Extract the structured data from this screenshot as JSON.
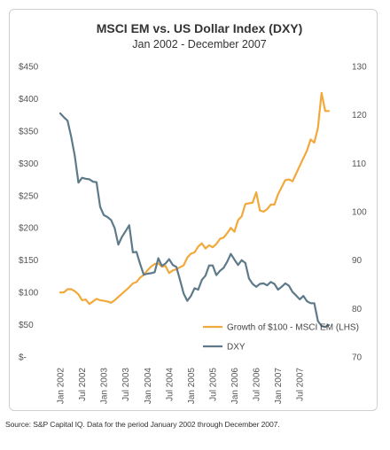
{
  "source_note": "Source: S&P Capital IQ. Data for the period January 2002 through December 2007.",
  "chart_data": {
    "type": "line",
    "title": "MSCI EM vs. US Dollar Index (DXY)",
    "subtitle": "Jan 2002 - December 2007",
    "left_axis": {
      "range": [
        0,
        450
      ],
      "ticks": [
        "$-",
        "$50",
        "$100",
        "$150",
        "$200",
        "$250",
        "$300",
        "$350",
        "$400",
        "$450"
      ]
    },
    "right_axis": {
      "range": [
        70,
        130
      ],
      "ticks": [
        "70",
        "80",
        "90",
        "100",
        "110",
        "120",
        "130"
      ]
    },
    "x_tick_labels": [
      "Jan 2002",
      "Jul 2002",
      "Jan 2003",
      "Jul 2003",
      "Jan 2004",
      "Jul 2004",
      "Jan 2005",
      "Jul 2005",
      "Jan 2006",
      "Jul 2006",
      "Jan 2007",
      "Jul 2007"
    ],
    "legend_position": "inside-bottom-right",
    "series": [
      {
        "name": "Growth of $100 - MSCI EM (LHS)",
        "axis": "left",
        "color": "#F2A93B",
        "values": [
          100,
          100,
          105,
          105,
          102,
          97,
          88,
          89,
          82,
          86,
          90,
          88,
          87,
          86,
          84,
          88,
          93,
          98,
          103,
          108,
          114,
          116,
          123,
          127,
          134,
          140,
          144,
          145,
          140,
          141,
          130,
          134,
          136,
          139,
          142,
          154,
          160,
          162,
          171,
          176,
          168,
          173,
          170,
          175,
          183,
          185,
          192,
          200,
          194,
          212,
          218,
          237,
          238,
          239,
          255,
          227,
          225,
          229,
          236,
          236,
          252,
          263,
          274,
          275,
          272,
          284,
          296,
          308,
          320,
          337,
          332,
          355,
          409,
          381,
          381
        ]
      },
      {
        "name": "DXY",
        "axis": "right",
        "color": "#5E7A8A",
        "values": [
          120.3,
          119.5,
          118.8,
          115.5,
          111.5,
          106.0,
          107.0,
          106.8,
          106.7,
          106.2,
          106.1,
          101.0,
          99.3,
          98.9,
          98.3,
          96.6,
          93.2,
          94.8,
          96.0,
          97.2,
          91.6,
          91.7,
          89.2,
          87.0,
          87.2,
          87.3,
          87.5,
          90.4,
          88.8,
          89.3,
          90.2,
          89.0,
          88.6,
          85.9,
          83.1,
          81.6,
          82.6,
          84.2,
          83.9,
          85.9,
          86.8,
          88.9,
          88.9,
          86.9,
          87.8,
          88.4,
          89.7,
          91.3,
          90.1,
          89.0,
          90.0,
          89.4,
          86.2,
          85.1,
          84.5,
          85.1,
          85.2,
          84.8,
          85.5,
          85.1,
          83.9,
          84.5,
          85.2,
          84.7,
          83.4,
          82.7,
          81.9,
          82.6,
          81.5,
          81.1,
          81.1,
          77.4,
          76.4,
          76.2,
          76.6
        ]
      }
    ]
  }
}
